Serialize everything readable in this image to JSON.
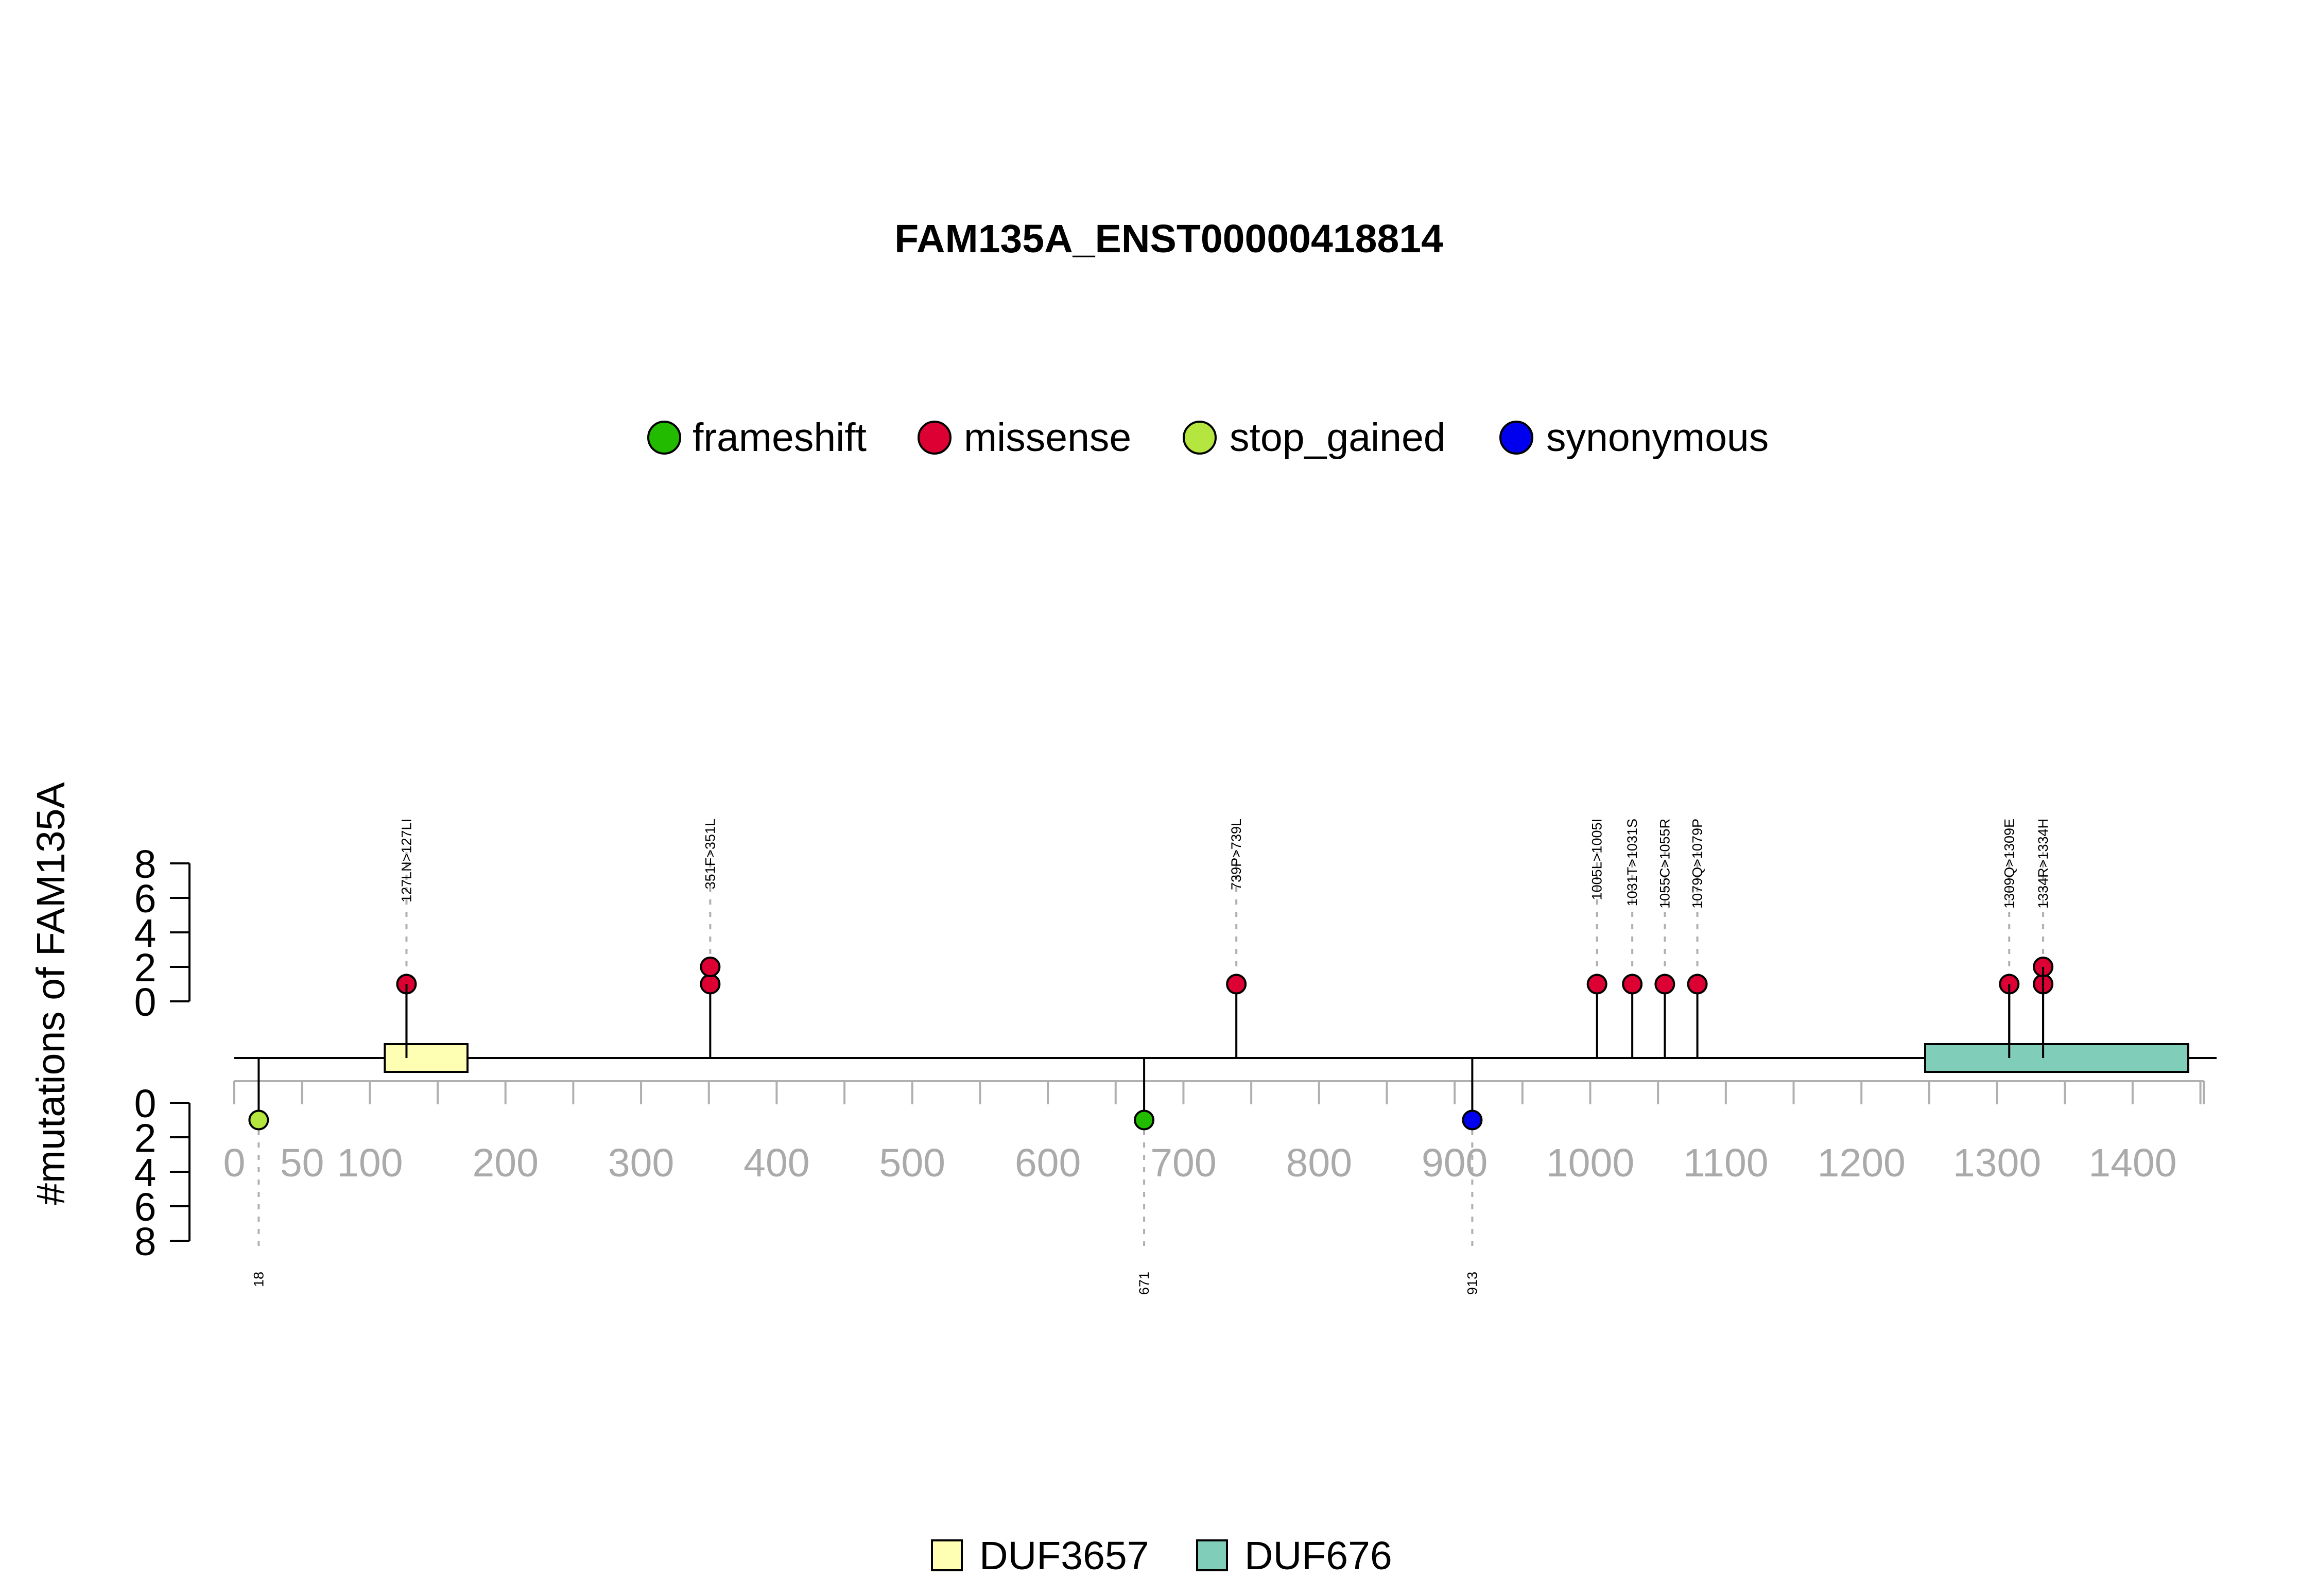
{
  "chart_data": {
    "type": "lollipop",
    "title": "FAM135A_ENST00000418814",
    "ylabel": "#mutations of FAM135A",
    "xlim": [
      0,
      1450
    ],
    "x_ticks": [
      0,
      50,
      100,
      200,
      300,
      400,
      500,
      600,
      700,
      800,
      900,
      1000,
      1100,
      1200,
      1300,
      1400
    ],
    "y_ticks": [
      0,
      2,
      4,
      6,
      8
    ],
    "ylim": [
      0,
      8
    ],
    "legend_top": [
      {
        "name": "frameshift",
        "color": "#22bb00"
      },
      {
        "name": "missense",
        "color": "#dd0033"
      },
      {
        "name": "stop_gained",
        "color": "#b5e640"
      },
      {
        "name": "synonymous",
        "color": "#0000ee"
      }
    ],
    "legend_bottom": [
      {
        "name": "DUF3657",
        "color": "#ffffb3"
      },
      {
        "name": "DUF676",
        "color": "#80cdb9"
      }
    ],
    "domains": [
      {
        "name": "DUF3657",
        "start": 111,
        "end": 172,
        "color": "#ffffb3"
      },
      {
        "name": "DUF676",
        "start": 1247,
        "end": 1441,
        "color": "#80cdb9"
      }
    ],
    "mutations_top": [
      {
        "pos": 127,
        "label": "127LN>127LI",
        "count": 1,
        "type": "missense"
      },
      {
        "pos": 351,
        "label": "351F>351L",
        "count": 2,
        "type": "missense"
      },
      {
        "pos": 739,
        "label": "739P>739L",
        "count": 1,
        "type": "missense"
      },
      {
        "pos": 1005,
        "label": "1005L>1005I",
        "count": 1,
        "type": "missense"
      },
      {
        "pos": 1031,
        "label": "1031T>1031S",
        "count": 1,
        "type": "missense"
      },
      {
        "pos": 1055,
        "label": "1055C>1055R",
        "count": 1,
        "type": "missense"
      },
      {
        "pos": 1079,
        "label": "1079Q>1079P",
        "count": 1,
        "type": "missense"
      },
      {
        "pos": 1309,
        "label": "1309Q>1309E",
        "count": 1,
        "type": "missense"
      },
      {
        "pos": 1334,
        "label": "1334R>1334H",
        "count": 2,
        "type": "missense"
      }
    ],
    "mutations_bottom": [
      {
        "pos": 18,
        "label": "18",
        "count": 1,
        "type": "stop_gained"
      },
      {
        "pos": 671,
        "label": "671",
        "count": 1,
        "type": "frameshift"
      },
      {
        "pos": 913,
        "label": "913",
        "count": 1,
        "type": "synonymous"
      }
    ]
  }
}
